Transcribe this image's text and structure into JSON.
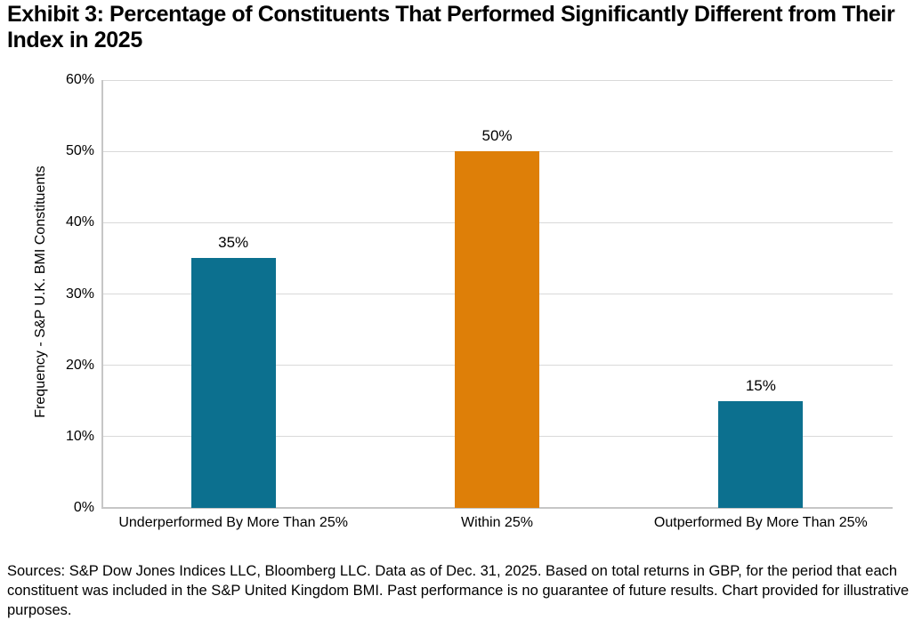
{
  "page": {
    "title": "Exhibit 3: Percentage of Constituents That Performed Significantly Different from Their Index in 2025",
    "source_note": "Sources: S&P Dow Jones Indices LLC, Bloomberg LLC. Data as of Dec. 31, 2025. Based on total returns in GBP, for the period that each constituent was included in the S&P United Kingdom BMI. Past performance is no guarantee of future results. Chart provided for illustrative purposes."
  },
  "chart_data": {
    "type": "bar",
    "categories": [
      "Underperformed By More Than 25%",
      "Within 25%",
      "Outperformed By More Than 25%"
    ],
    "values": [
      35,
      50,
      15
    ],
    "data_labels": [
      "35%",
      "50%",
      "15%"
    ],
    "bar_colors": [
      "#0c708f",
      "#de7f08",
      "#0c708f"
    ],
    "title": "",
    "xlabel": "",
    "ylabel": "Frequency - S&P U.K. BMI Constituents",
    "ylim": [
      0,
      60
    ],
    "ytick_labels": [
      "0%",
      "10%",
      "20%",
      "30%",
      "40%",
      "50%",
      "60%"
    ],
    "grid": "horizontal",
    "gridline_color": "#d9d9d9",
    "axis_line_color": "#c6c6c6",
    "legend_position": "none"
  }
}
